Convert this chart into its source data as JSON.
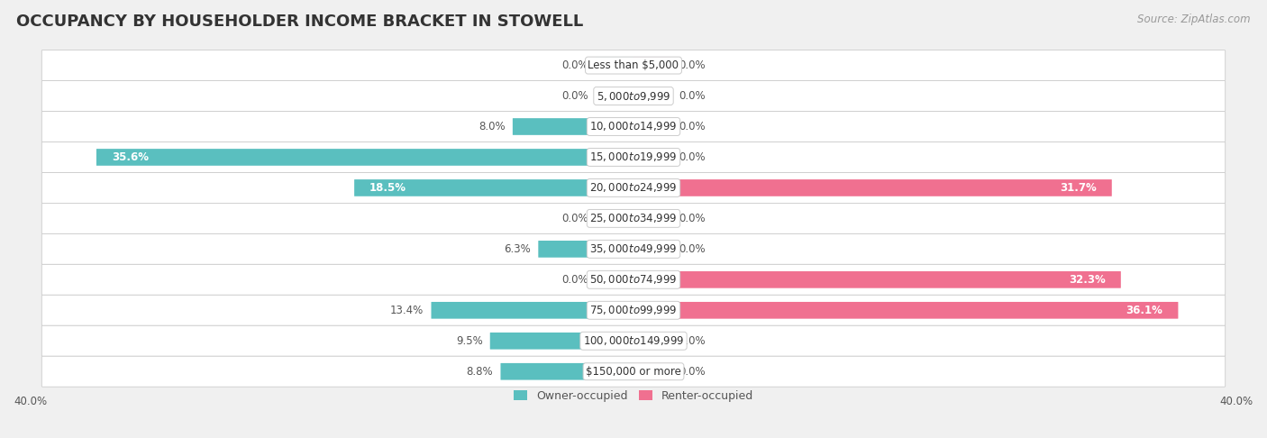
{
  "title": "OCCUPANCY BY HOUSEHOLDER INCOME BRACKET IN STOWELL",
  "source": "Source: ZipAtlas.com",
  "categories": [
    "Less than $5,000",
    "$5,000 to $9,999",
    "$10,000 to $14,999",
    "$15,000 to $19,999",
    "$20,000 to $24,999",
    "$25,000 to $34,999",
    "$35,000 to $49,999",
    "$50,000 to $74,999",
    "$75,000 to $99,999",
    "$100,000 to $149,999",
    "$150,000 or more"
  ],
  "owner_values": [
    0.0,
    0.0,
    8.0,
    35.6,
    18.5,
    0.0,
    6.3,
    0.0,
    13.4,
    9.5,
    8.8
  ],
  "renter_values": [
    0.0,
    0.0,
    0.0,
    0.0,
    31.7,
    0.0,
    0.0,
    32.3,
    36.1,
    0.0,
    0.0
  ],
  "owner_color": "#5abfbf",
  "renter_color": "#f07090",
  "owner_label": "Owner-occupied",
  "renter_label": "Renter-occupied",
  "axis_limit": 40.0,
  "background_color": "#f0f0f0",
  "row_bg_color": "#ffffff",
  "row_edge_color": "#cccccc",
  "title_fontsize": 13,
  "source_fontsize": 8.5,
  "label_fontsize": 8.5,
  "category_fontsize": 8.5,
  "bar_height": 0.52,
  "zero_bar_width": 2.5,
  "label_threshold": 15.0
}
